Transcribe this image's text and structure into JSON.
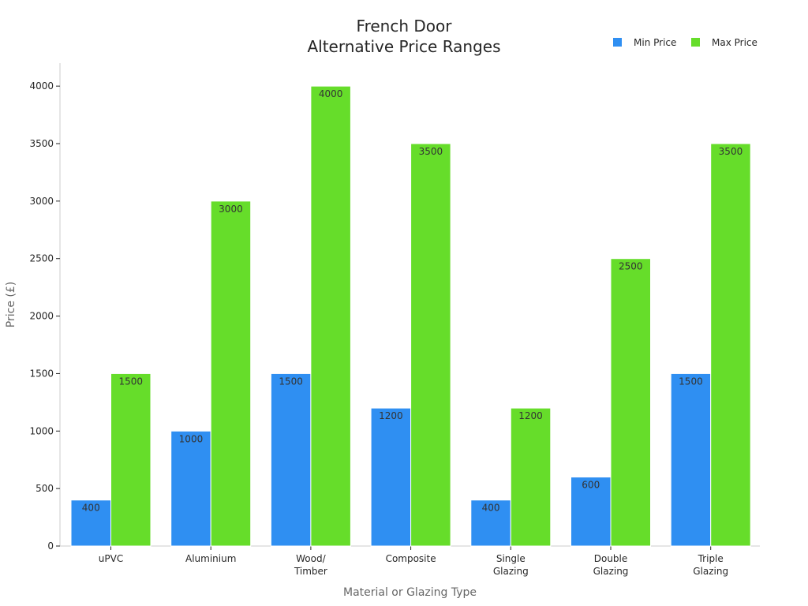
{
  "chart_data": {
    "type": "bar",
    "title": [
      "French Door",
      "Alternative Price Ranges"
    ],
    "xlabel": "Material or Glazing Type",
    "ylabel": "Price (£)",
    "ylim": [
      0,
      4200
    ],
    "yticks": [
      0,
      500,
      1000,
      1500,
      2000,
      2500,
      3000,
      3500,
      4000
    ],
    "categories": [
      [
        "uPVC"
      ],
      [
        "Aluminium"
      ],
      [
        "Wood/",
        "Timber"
      ],
      [
        "Composite"
      ],
      [
        "Single",
        "Glazing"
      ],
      [
        "Double",
        "Glazing"
      ],
      [
        "Triple",
        "Glazing"
      ]
    ],
    "series": [
      {
        "name": "Min Price",
        "color": "#2f8ff2",
        "values": [
          400,
          1000,
          1500,
          1200,
          400,
          600,
          1500
        ]
      },
      {
        "name": "Max Price",
        "color": "#66dd2a",
        "values": [
          1500,
          3000,
          4000,
          3500,
          1200,
          2500,
          3500
        ]
      }
    ],
    "legend_position": "top-right",
    "grid": false
  }
}
